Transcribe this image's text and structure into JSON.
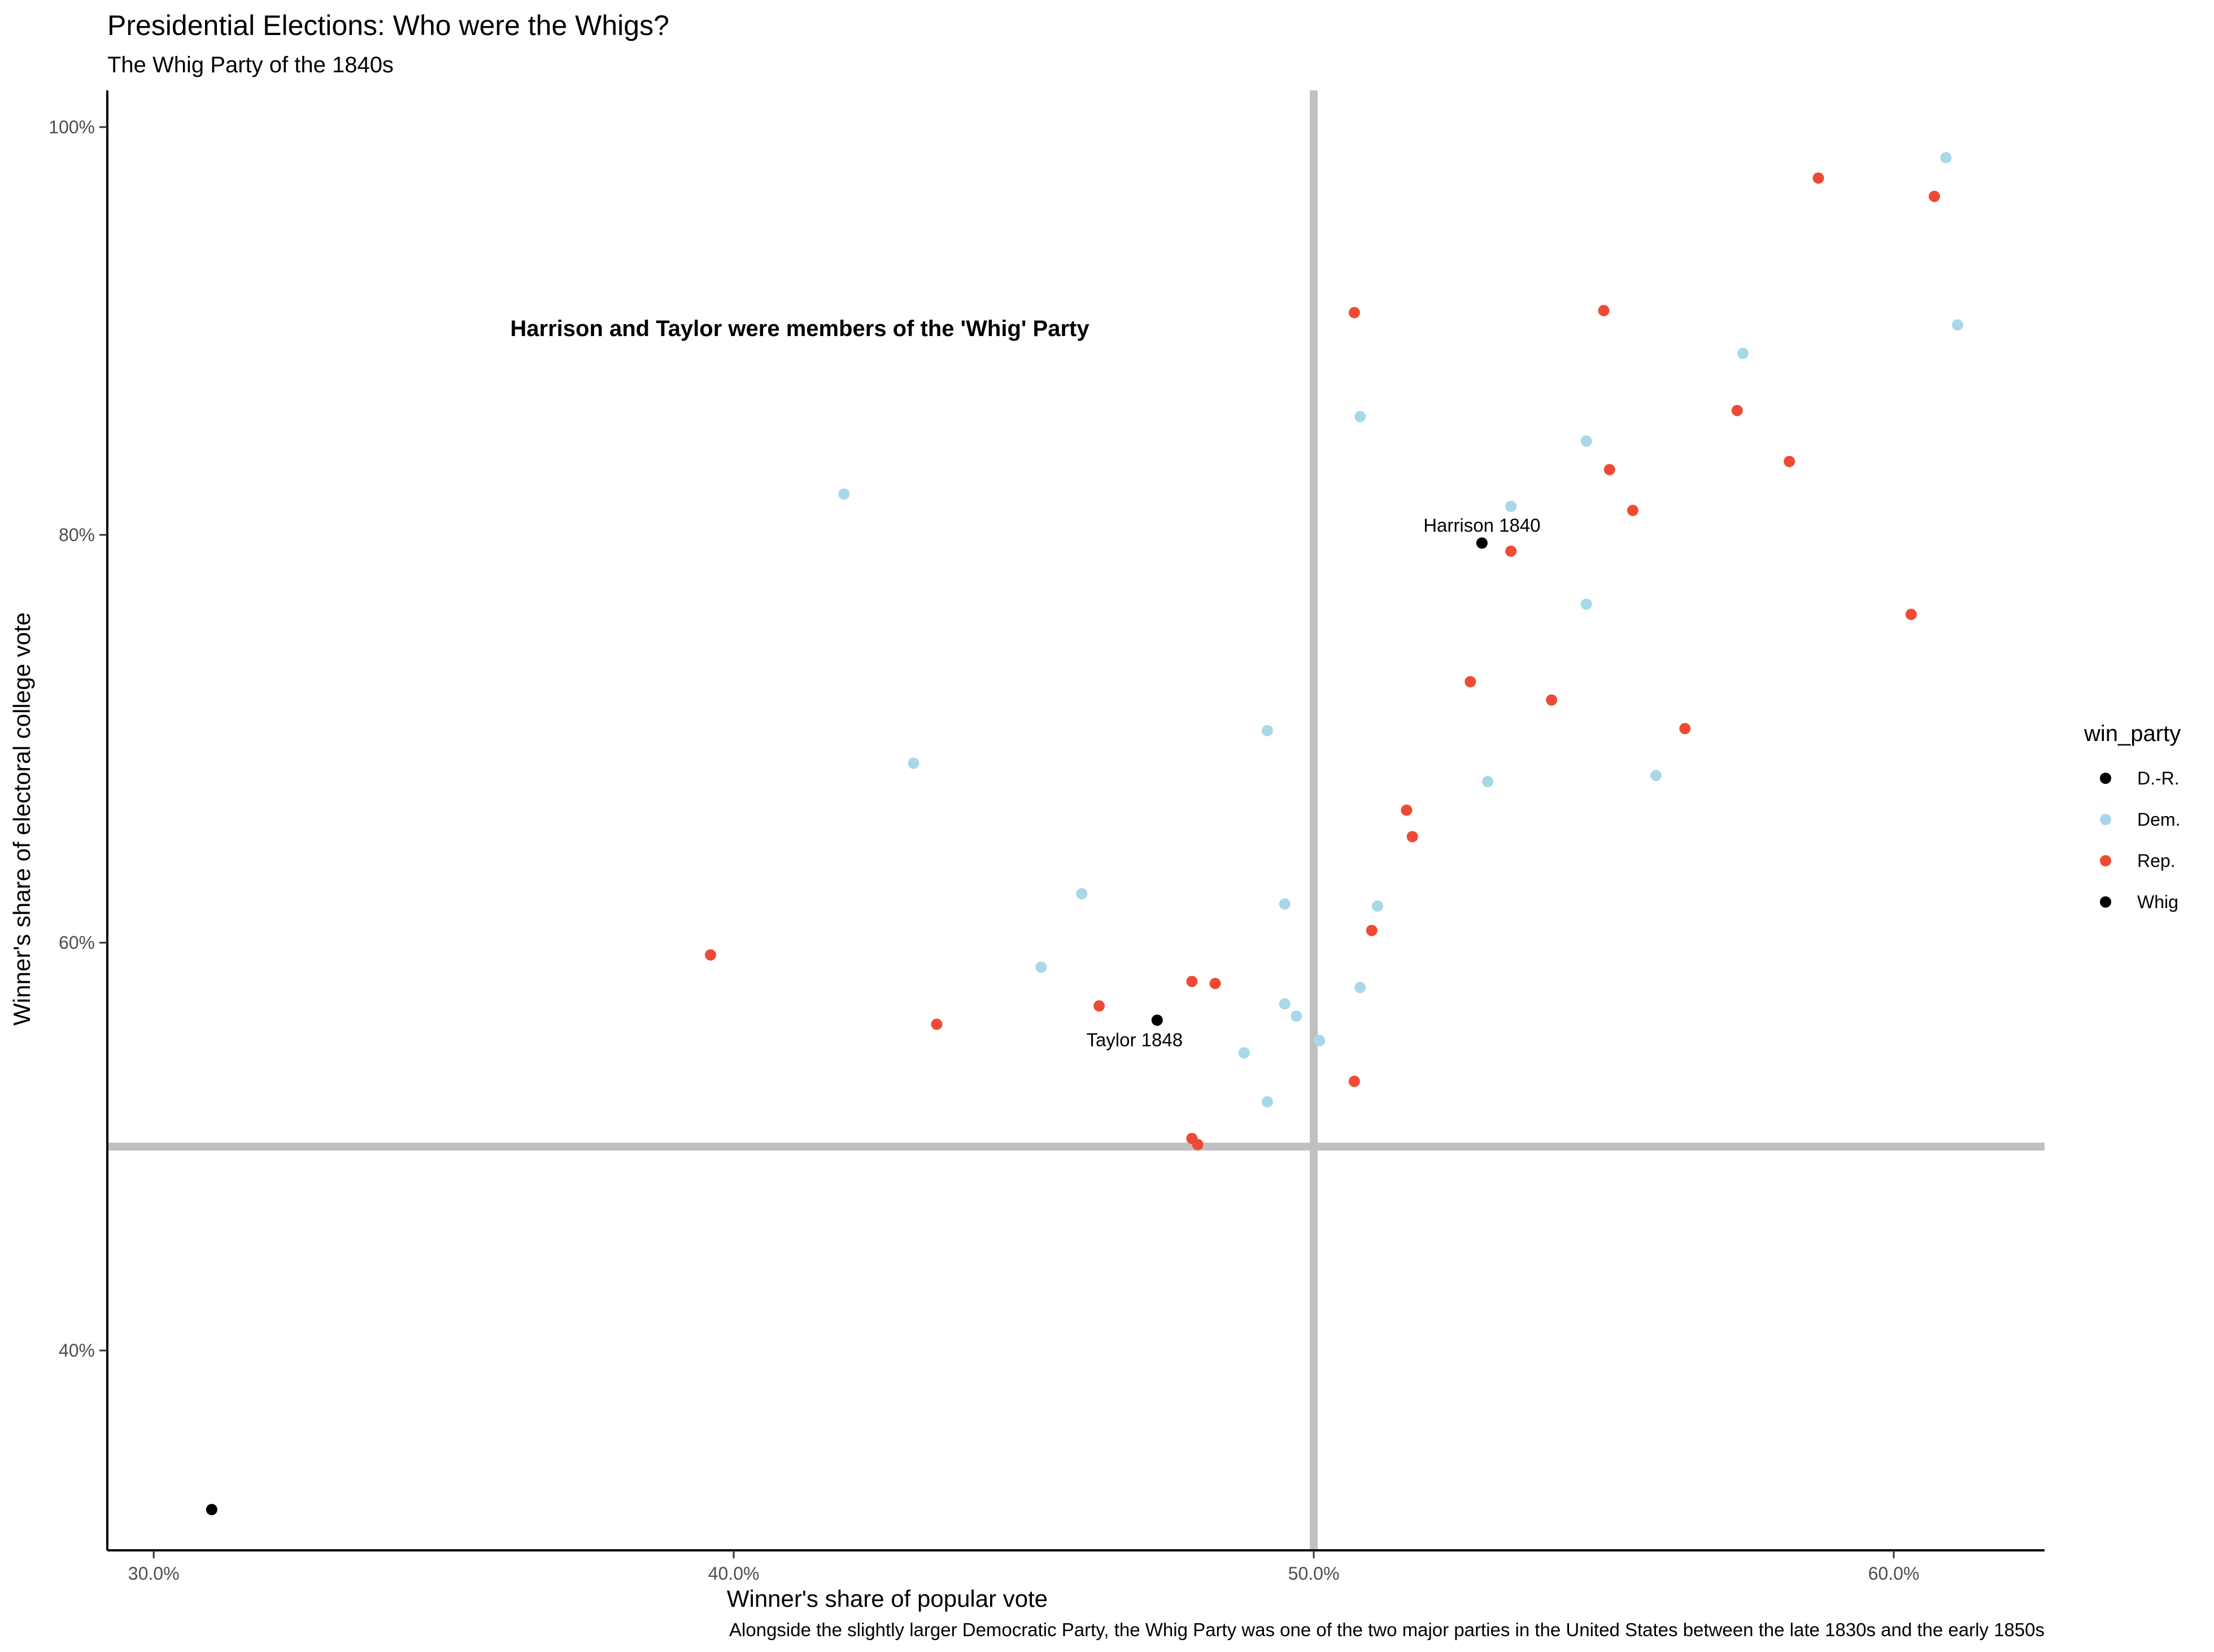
{
  "chart_data": {
    "type": "scatter",
    "title": "Presidential Elections: Who were the Whigs?",
    "subtitle": "The Whig Party of the 1840s",
    "xlabel": "Winner's share of popular vote",
    "ylabel": "Winner's share of electoral college vote",
    "caption": "Alongside the slightly larger Democratic Party, the Whig Party was one of the two major parties in the United States between the late 1830s and the early 1850s",
    "annotation": "Harrison and Taylor were members of the 'Whig' Party",
    "xlim": [
      0.292,
      0.626
    ],
    "ylim": [
      0.302,
      1.018
    ],
    "x_ticks": [
      0.3,
      0.4,
      0.5,
      0.6
    ],
    "x_tick_labels": [
      "30.0%",
      "40.0%",
      "50.0%",
      "60.0%"
    ],
    "y_ticks": [
      0.4,
      0.6,
      0.8,
      1.0
    ],
    "y_tick_labels": [
      "40%",
      "60%",
      "80%",
      "100%"
    ],
    "reference_lines": {
      "x": 0.5,
      "y": 0.5,
      "color": "#c0c0c0"
    },
    "grid": false,
    "legend": {
      "title": "win_party",
      "position": "right",
      "entries": [
        {
          "name": "D.-R.",
          "color": "#000000"
        },
        {
          "name": "Dem.",
          "color": "#a8d8e8"
        },
        {
          "name": "Rep.",
          "color": "#ef4a34"
        },
        {
          "name": "Whig",
          "color": "#000000"
        }
      ]
    },
    "series": [
      {
        "name": "D.-R.",
        "color": "#000000",
        "points": [
          {
            "x": 0.31,
            "y": 0.322
          }
        ]
      },
      {
        "name": "Dem.",
        "color": "#a8d8e8",
        "points": [
          {
            "x": 0.609,
            "y": 0.985
          },
          {
            "x": 0.611,
            "y": 0.903
          },
          {
            "x": 0.574,
            "y": 0.889
          },
          {
            "x": 0.508,
            "y": 0.858
          },
          {
            "x": 0.547,
            "y": 0.846
          },
          {
            "x": 0.534,
            "y": 0.814
          },
          {
            "x": 0.419,
            "y": 0.82
          },
          {
            "x": 0.547,
            "y": 0.766
          },
          {
            "x": 0.492,
            "y": 0.704
          },
          {
            "x": 0.431,
            "y": 0.688
          },
          {
            "x": 0.53,
            "y": 0.679
          },
          {
            "x": 0.559,
            "y": 0.682
          },
          {
            "x": 0.46,
            "y": 0.624
          },
          {
            "x": 0.495,
            "y": 0.619
          },
          {
            "x": 0.511,
            "y": 0.618
          },
          {
            "x": 0.453,
            "y": 0.588
          },
          {
            "x": 0.508,
            "y": 0.578
          },
          {
            "x": 0.495,
            "y": 0.57
          },
          {
            "x": 0.497,
            "y": 0.564
          },
          {
            "x": 0.501,
            "y": 0.552
          },
          {
            "x": 0.488,
            "y": 0.546
          },
          {
            "x": 0.492,
            "y": 0.522
          }
        ]
      },
      {
        "name": "Rep.",
        "color": "#ef4a34",
        "points": [
          {
            "x": 0.587,
            "y": 0.975
          },
          {
            "x": 0.607,
            "y": 0.966
          },
          {
            "x": 0.507,
            "y": 0.909
          },
          {
            "x": 0.55,
            "y": 0.91
          },
          {
            "x": 0.573,
            "y": 0.861
          },
          {
            "x": 0.582,
            "y": 0.836
          },
          {
            "x": 0.551,
            "y": 0.832
          },
          {
            "x": 0.555,
            "y": 0.812
          },
          {
            "x": 0.534,
            "y": 0.792
          },
          {
            "x": 0.603,
            "y": 0.761
          },
          {
            "x": 0.527,
            "y": 0.728
          },
          {
            "x": 0.541,
            "y": 0.719
          },
          {
            "x": 0.564,
            "y": 0.705
          },
          {
            "x": 0.516,
            "y": 0.665
          },
          {
            "x": 0.517,
            "y": 0.652
          },
          {
            "x": 0.51,
            "y": 0.606
          },
          {
            "x": 0.396,
            "y": 0.594
          },
          {
            "x": 0.479,
            "y": 0.581
          },
          {
            "x": 0.483,
            "y": 0.58
          },
          {
            "x": 0.463,
            "y": 0.569
          },
          {
            "x": 0.435,
            "y": 0.56
          },
          {
            "x": 0.507,
            "y": 0.532
          },
          {
            "x": 0.479,
            "y": 0.504
          },
          {
            "x": 0.48,
            "y": 0.501
          }
        ]
      },
      {
        "name": "Whig",
        "color": "#000000",
        "points": [
          {
            "x": 0.529,
            "y": 0.796,
            "label": "Harrison 1840",
            "label_pos": "above"
          },
          {
            "x": 0.473,
            "y": 0.562,
            "label": "Taylor 1848",
            "label_pos": "below-left"
          }
        ]
      }
    ]
  }
}
